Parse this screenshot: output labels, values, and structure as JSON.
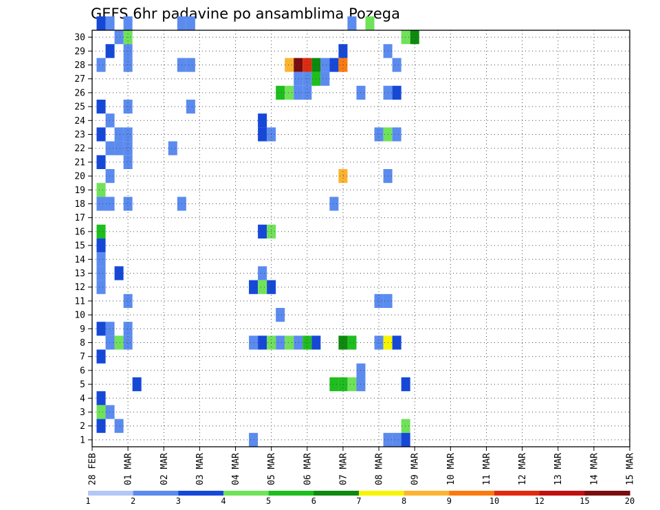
{
  "chart_data": {
    "type": "heatmap",
    "title": "GEFS 6hr padavine po ansamblima Pozega",
    "xlabel": "",
    "ylabel": "",
    "x_tick_labels": [
      "28 FEB",
      "01 MAR",
      "02 MAR",
      "03 MAR",
      "04 MAR",
      "05 MAR",
      "06 MAR",
      "07 MAR",
      "08 MAR",
      "09 MAR",
      "10 MAR",
      "11 MAR",
      "12 MAR",
      "13 MAR",
      "14 MAR",
      "15 MAR"
    ],
    "y_tick_labels": [
      "1",
      "2",
      "3",
      "4",
      "5",
      "6",
      "7",
      "8",
      "9",
      "10",
      "11",
      "12",
      "13",
      "14",
      "15",
      "16",
      "17",
      "18",
      "19",
      "20",
      "21",
      "22",
      "23",
      "24",
      "25",
      "26",
      "27",
      "28",
      "29",
      "30"
    ],
    "time_step": "6hr",
    "grid": true,
    "colorbar": {
      "position": "bottom",
      "colors": [
        "#b3c7f7",
        "#5b8bef",
        "#1648d8",
        "#6fe25a",
        "#1ebe1e",
        "#0e8a0e",
        "#f5f500",
        "#fbb430",
        "#fb7a10",
        "#e12a10",
        "#c01010",
        "#7a0d0d"
      ],
      "labels": [
        "1",
        "2",
        "3",
        "4",
        "5",
        "6",
        "7",
        "8",
        "9",
        "10",
        "12",
        "15",
        "20"
      ]
    },
    "cells": [
      [
        1,
        30,
        2
      ],
      [
        2,
        30,
        1
      ],
      [
        4,
        30,
        1
      ],
      [
        10,
        30,
        1
      ],
      [
        11,
        30,
        1
      ],
      [
        29,
        30,
        1
      ],
      [
        31,
        30,
        3
      ],
      [
        3,
        29,
        1
      ],
      [
        4,
        29,
        3
      ],
      [
        35,
        29,
        3
      ],
      [
        36,
        29,
        5
      ],
      [
        2,
        28,
        2
      ],
      [
        4,
        28,
        1
      ],
      [
        28,
        28,
        2
      ],
      [
        33,
        28,
        1
      ],
      [
        1,
        27,
        1
      ],
      [
        4,
        27,
        1
      ],
      [
        10,
        27,
        1
      ],
      [
        11,
        27,
        1
      ],
      [
        22,
        27,
        7
      ],
      [
        23,
        27,
        11
      ],
      [
        24,
        27,
        9
      ],
      [
        25,
        27,
        5
      ],
      [
        26,
        27,
        1
      ],
      [
        27,
        27,
        2
      ],
      [
        28,
        27,
        8
      ],
      [
        34,
        27,
        1
      ],
      [
        23,
        26,
        1
      ],
      [
        24,
        26,
        1
      ],
      [
        25,
        26,
        4
      ],
      [
        26,
        26,
        1
      ],
      [
        21,
        25,
        4
      ],
      [
        22,
        25,
        3
      ],
      [
        23,
        25,
        1
      ],
      [
        24,
        25,
        1
      ],
      [
        30,
        25,
        1
      ],
      [
        33,
        25,
        1
      ],
      [
        34,
        25,
        2
      ],
      [
        1,
        24,
        2
      ],
      [
        4,
        24,
        1
      ],
      [
        11,
        24,
        1
      ],
      [
        2,
        23,
        1
      ],
      [
        19,
        23,
        2
      ],
      [
        1,
        22,
        2
      ],
      [
        3,
        22,
        1
      ],
      [
        4,
        22,
        1
      ],
      [
        19,
        22,
        2
      ],
      [
        20,
        22,
        1
      ],
      [
        32,
        22,
        1
      ],
      [
        33,
        22,
        3
      ],
      [
        34,
        22,
        1
      ],
      [
        2,
        21,
        1
      ],
      [
        3,
        21,
        1
      ],
      [
        4,
        21,
        1
      ],
      [
        9,
        21,
        1
      ],
      [
        1,
        20,
        2
      ],
      [
        4,
        20,
        1
      ],
      [
        2,
        19,
        1
      ],
      [
        28,
        19,
        7
      ],
      [
        33,
        19,
        1
      ],
      [
        1,
        18,
        3
      ],
      [
        1,
        17,
        1
      ],
      [
        2,
        17,
        1
      ],
      [
        4,
        17,
        1
      ],
      [
        10,
        17,
        1
      ],
      [
        27,
        17,
        1
      ],
      [
        1,
        15,
        4
      ],
      [
        19,
        15,
        2
      ],
      [
        20,
        15,
        3
      ],
      [
        1,
        14,
        2
      ],
      [
        1,
        13,
        1
      ],
      [
        1,
        12,
        1
      ],
      [
        3,
        12,
        2
      ],
      [
        19,
        12,
        1
      ],
      [
        1,
        11,
        1
      ],
      [
        18,
        11,
        2
      ],
      [
        19,
        11,
        3
      ],
      [
        20,
        11,
        2
      ],
      [
        4,
        10,
        1
      ],
      [
        32,
        10,
        1
      ],
      [
        33,
        10,
        1
      ],
      [
        21,
        9,
        1
      ],
      [
        1,
        8,
        2
      ],
      [
        2,
        8,
        1
      ],
      [
        4,
        8,
        1
      ],
      [
        2,
        7,
        1
      ],
      [
        3,
        7,
        3
      ],
      [
        4,
        7,
        1
      ],
      [
        18,
        7,
        1
      ],
      [
        19,
        7,
        2
      ],
      [
        20,
        7,
        3
      ],
      [
        21,
        7,
        1
      ],
      [
        22,
        7,
        3
      ],
      [
        23,
        7,
        1
      ],
      [
        24,
        7,
        4
      ],
      [
        25,
        7,
        2
      ],
      [
        28,
        7,
        5
      ],
      [
        29,
        7,
        4
      ],
      [
        32,
        7,
        1
      ],
      [
        33,
        7,
        6
      ],
      [
        34,
        7,
        2
      ],
      [
        1,
        6,
        2
      ],
      [
        30,
        5,
        1
      ],
      [
        5,
        4,
        2
      ],
      [
        27,
        4,
        4
      ],
      [
        28,
        4,
        4
      ],
      [
        29,
        4,
        3
      ],
      [
        30,
        4,
        1
      ],
      [
        35,
        4,
        2
      ],
      [
        1,
        3,
        2
      ],
      [
        1,
        2,
        3
      ],
      [
        2,
        2,
        1
      ],
      [
        1,
        1,
        2
      ],
      [
        3,
        1,
        1
      ],
      [
        35,
        1,
        3
      ],
      [
        18,
        0,
        1
      ],
      [
        33,
        0,
        1
      ],
      [
        34,
        0,
        1
      ],
      [
        35,
        0,
        2
      ]
    ]
  }
}
